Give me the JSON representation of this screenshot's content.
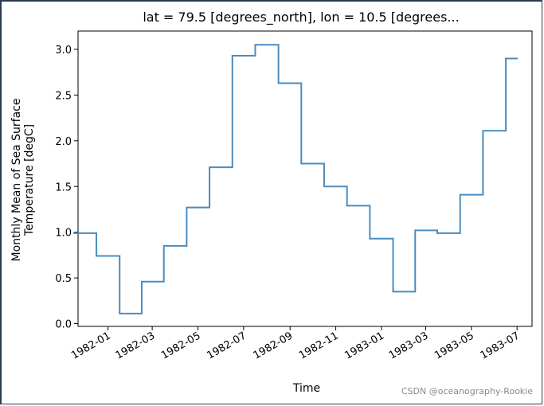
{
  "chart_data": {
    "type": "line",
    "step": "post",
    "title": "lat = 79.5 [degrees_north], lon = 10.5 [degrees...",
    "xlabel": "Time",
    "ylabel_lines": [
      "Monthly Mean of Sea Surface",
      "Temperature [degC]"
    ],
    "ylim": [
      -0.03,
      3.2
    ],
    "xlim": [
      "1981-11-22",
      "1983-07-21"
    ],
    "yticks": [
      0.0,
      0.5,
      1.0,
      1.5,
      2.0,
      2.5,
      3.0
    ],
    "ytick_labels": [
      "0.0",
      "0.5",
      "1.0",
      "1.5",
      "2.0",
      "2.5",
      "3.0"
    ],
    "xticks": [
      "1982-01-01",
      "1982-03-01",
      "1982-05-01",
      "1982-07-01",
      "1982-09-01",
      "1982-11-01",
      "1983-01-01",
      "1983-03-01",
      "1983-05-01",
      "1983-07-01"
    ],
    "xtick_labels": [
      "1982-01",
      "1982-03",
      "1982-05",
      "1982-07",
      "1982-09",
      "1982-11",
      "1983-01",
      "1983-03",
      "1983-05",
      "1983-07"
    ],
    "grid": false,
    "line_color": "#4a8cbf",
    "series": [
      {
        "x": [
          "1981-12-01",
          "1982-01-01",
          "1982-02-01",
          "1982-03-01",
          "1982-04-01",
          "1982-05-01",
          "1982-06-01",
          "1982-07-01",
          "1982-08-01",
          "1982-09-01",
          "1982-10-01",
          "1982-11-01",
          "1982-12-01",
          "1983-01-01",
          "1983-02-01",
          "1983-03-01",
          "1983-04-01",
          "1983-05-01",
          "1983-06-01",
          "1983-07-01"
        ],
        "y": [
          0.99,
          0.74,
          0.11,
          0.46,
          0.85,
          1.27,
          1.71,
          2.93,
          3.05,
          2.63,
          1.75,
          1.5,
          1.29,
          0.93,
          0.35,
          1.02,
          0.99,
          1.41,
          2.11,
          2.9
        ]
      }
    ]
  },
  "watermark": "CSDN @oceanography-Rookie"
}
